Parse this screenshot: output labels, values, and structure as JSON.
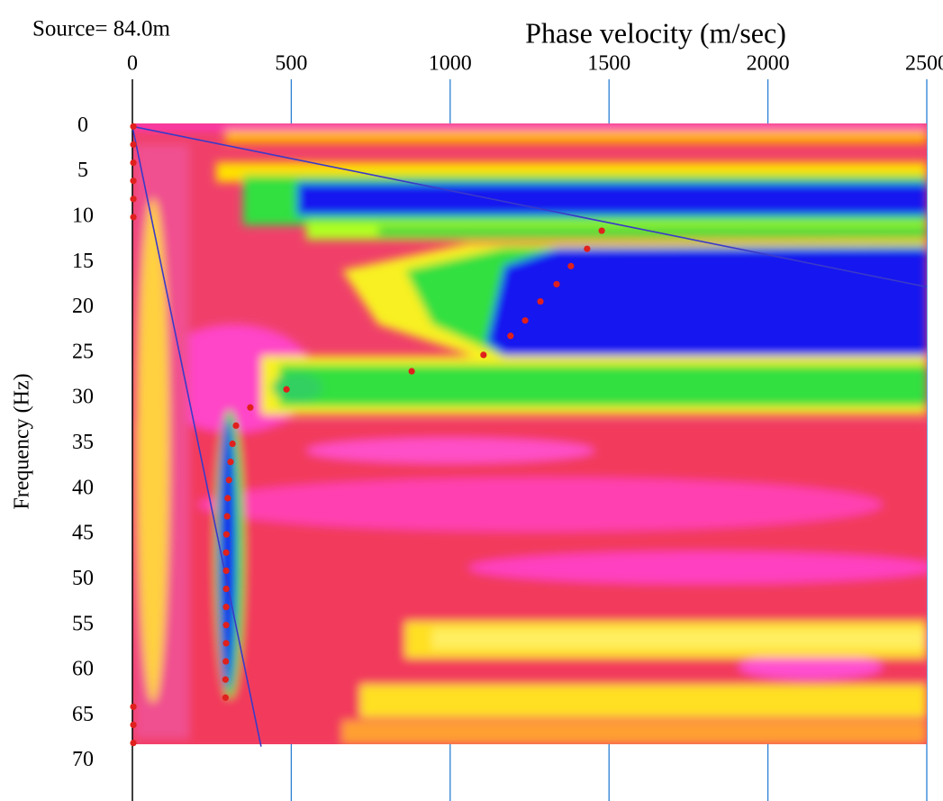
{
  "chart_data": {
    "type": "scatter",
    "title": "Source= 84.0m",
    "x_label": "Phase velocity (m/sec)",
    "y_label": "Frequency (Hz)",
    "xlim": [
      0,
      2500
    ],
    "xticks": [
      0,
      500,
      1000,
      1500,
      2000,
      2500
    ],
    "ylim": [
      -5.2,
      74.4
    ],
    "yticks": [
      0,
      5,
      10,
      15,
      20,
      25,
      30,
      35,
      40,
      45,
      50,
      55,
      60,
      65,
      70
    ],
    "y_inverted": true,
    "grid": true,
    "grid_color": "#2a7fd4",
    "points": {
      "color": "#e0201c",
      "x": [
        3,
        3,
        3,
        3,
        3,
        3,
        1477,
        1431,
        1380,
        1335,
        1284,
        1236,
        1190,
        1105,
        879,
        485,
        371,
        326,
        315,
        309,
        304,
        300,
        298,
        296,
        295,
        295,
        295,
        295,
        295,
        295,
        294,
        293,
        293,
        3,
        3,
        3
      ],
      "y": [
        0,
        2,
        4,
        6,
        8,
        10,
        11.5,
        13.5,
        15.4,
        17.4,
        19.3,
        21.4,
        23.1,
        25.2,
        27,
        29,
        31,
        33,
        35,
        37,
        39,
        41,
        43,
        45,
        47,
        49,
        51,
        53,
        55,
        57,
        59,
        61,
        63,
        64,
        66,
        68
      ]
    },
    "lines": {
      "color": "#3a3ac8",
      "items": [
        {
          "x": [
            0,
            2500
          ],
          "y": [
            0,
            17.7
          ]
        },
        {
          "x": [
            0,
            405
          ],
          "y": [
            0,
            68.4
          ]
        }
      ]
    }
  }
}
